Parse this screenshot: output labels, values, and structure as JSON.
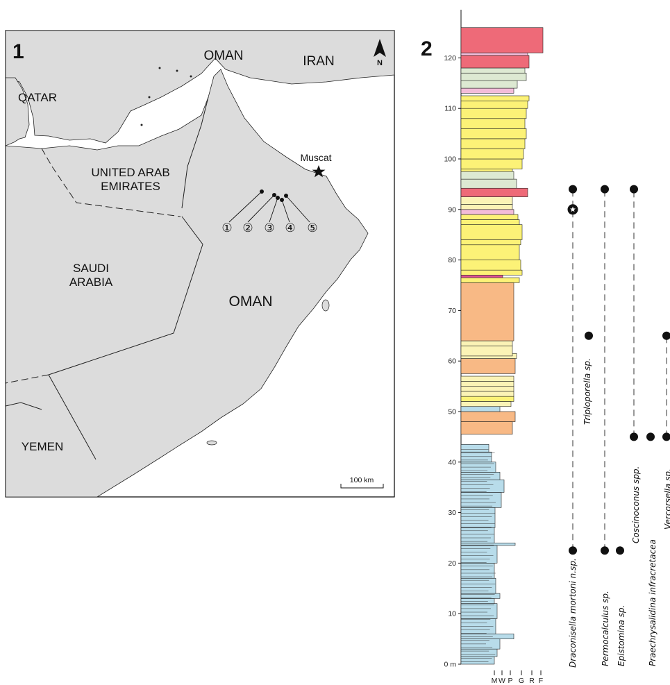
{
  "panels": {
    "map": {
      "panel_number": "1",
      "north_label": "N",
      "scale_label": "100 km",
      "city_label": "Muscat",
      "countries": {
        "oman_north": "OMAN",
        "iran": "IRAN",
        "qatar": "QATAR",
        "uae_line1": "UNITED ARAB",
        "uae_line2": "EMIRATES",
        "saudi_line1": "SAUDI",
        "saudi_line2": "ARABIA",
        "oman_main": "OMAN",
        "yemen": "YEMEN"
      },
      "localities": [
        "①",
        "②",
        "③",
        "④",
        "⑤"
      ],
      "colors": {
        "land": "#dcdcdc",
        "sea": "#ffffff",
        "frame": "#000000"
      }
    },
    "section": {
      "panel_number": "2",
      "depth_ticks": [
        "0 m",
        "10",
        "20",
        "30",
        "40",
        "50",
        "60",
        "70",
        "80",
        "90",
        "100",
        "110",
        "120"
      ],
      "texture_labels": [
        "M",
        "W",
        "P",
        "G",
        "R",
        "F"
      ],
      "species": [
        {
          "label": "Draconisella mortoni n.sp.",
          "from_m": 22.5,
          "to_m": 94,
          "type_level_m": 90
        },
        {
          "label": "Triploporella sp.",
          "from_m": 65,
          "to_m": 65
        },
        {
          "label": "Permocalculus sp.",
          "from_m": 22.5,
          "to_m": 94
        },
        {
          "label": "Epistomina sp.",
          "from_m": 22.5,
          "to_m": 22.5
        },
        {
          "label": "Coscinoconus spp.",
          "from_m": 45,
          "to_m": 94
        },
        {
          "label": "Praechrysalidina infracretacea",
          "from_m": 45,
          "to_m": 45
        },
        {
          "label": "Vercorsella sp.",
          "from_m": 45,
          "to_m": 65
        }
      ],
      "colors": {
        "blue": "#b8dcea",
        "orange": "#f8b985",
        "yellow": "#fcf277",
        "paleyellow": "#fbf3b6",
        "red": "#ee6a78",
        "pink": "#f3bcd9",
        "green": "#dde9d2",
        "magenta": "#e24f95"
      }
    }
  }
}
